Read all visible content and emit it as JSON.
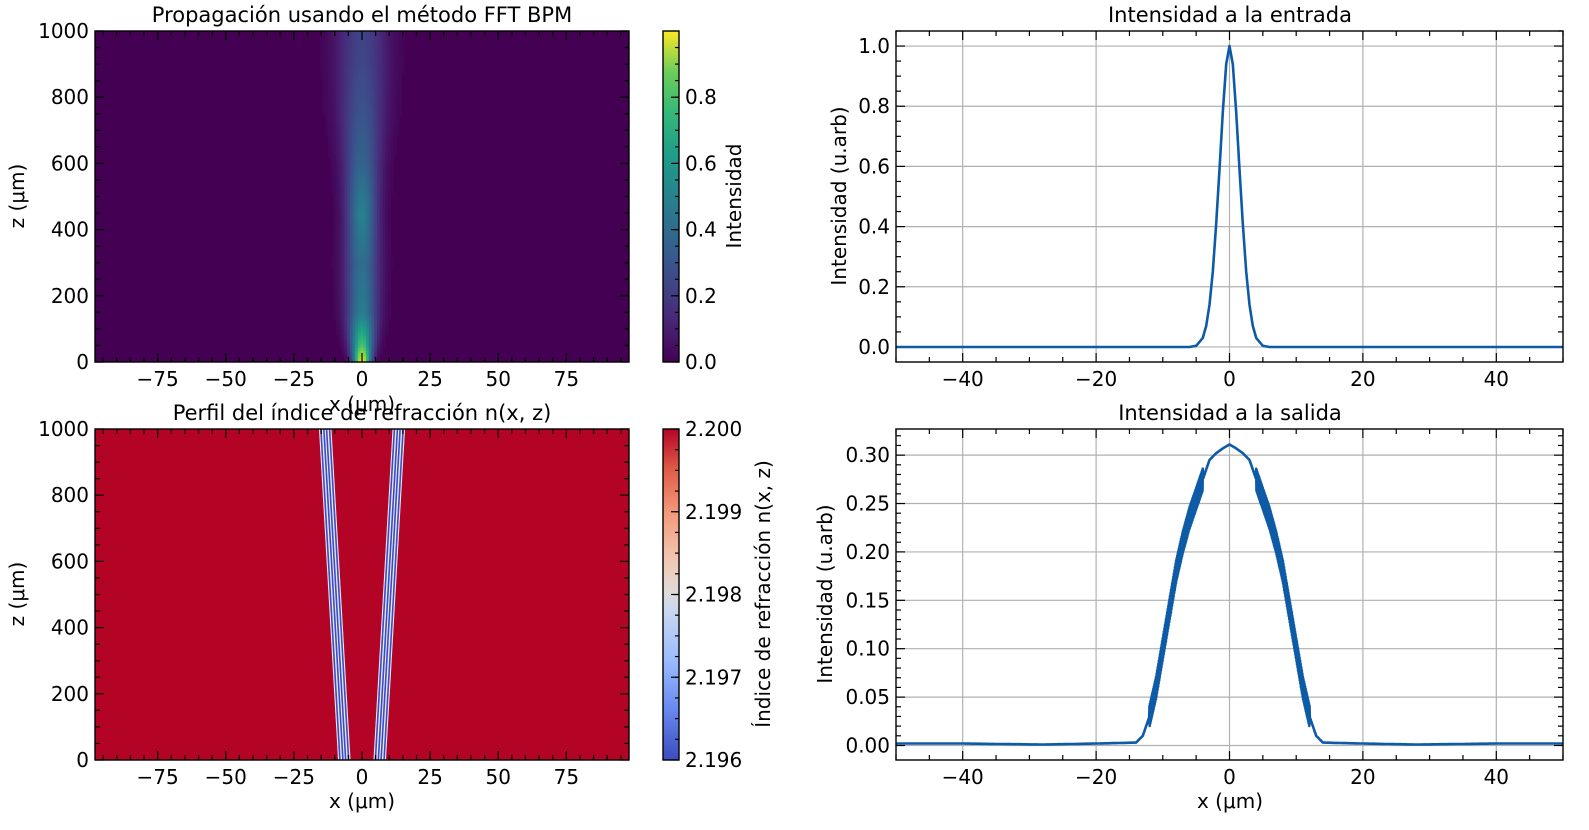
{
  "chart_data": [
    {
      "type": "heatmap",
      "title": "Propagación usando el método FFT BPM",
      "xlabel": "x (μm)",
      "ylabel": "z (μm)",
      "xlim": [
        -98,
        98
      ],
      "ylim": [
        0,
        1000
      ],
      "xticks": [
        "−75",
        "−50",
        "−25",
        "0",
        "25",
        "50",
        "75"
      ],
      "xtick_values": [
        -75,
        -50,
        -25,
        0,
        25,
        50,
        75
      ],
      "yticks": [
        "0",
        "200",
        "400",
        "600",
        "800",
        "1000"
      ],
      "ytick_values": [
        0,
        200,
        400,
        600,
        800,
        1000
      ],
      "colormap": "viridis",
      "colorbar": {
        "label": "Intensidad",
        "range": [
          0,
          1.0
        ],
        "ticks": [
          "0.0",
          "0.2",
          "0.4",
          "0.6",
          "0.8"
        ],
        "tick_values": [
          0,
          0.2,
          0.4,
          0.6,
          0.8
        ]
      },
      "beam": {
        "z": [
          0,
          50,
          150,
          300,
          450,
          600,
          750,
          900,
          1000
        ],
        "peak_intensity": [
          1.0,
          0.72,
          0.42,
          0.36,
          0.44,
          0.32,
          0.26,
          0.21,
          0.2
        ],
        "half_width": [
          3,
          4,
          5.5,
          6,
          5.5,
          6.5,
          8,
          9,
          9
        ]
      }
    },
    {
      "type": "heatmap",
      "title": "Perfil del índice de refracción n(x, z)",
      "xlabel": "x (μm)",
      "ylabel": "z (μm)",
      "xlim": [
        -98,
        98
      ],
      "ylim": [
        0,
        1000
      ],
      "xticks": [
        "−75",
        "−50",
        "−25",
        "0",
        "25",
        "50",
        "75"
      ],
      "xtick_values": [
        -75,
        -50,
        -25,
        0,
        25,
        50,
        75
      ],
      "yticks": [
        "0",
        "200",
        "400",
        "600",
        "800",
        "1000"
      ],
      "ytick_values": [
        0,
        200,
        400,
        600,
        800,
        1000
      ],
      "colormap": "coolwarm",
      "background_index": 2.2,
      "colorbar": {
        "label": "Índice de refracción n(x, z)",
        "range": [
          2.196,
          2.2
        ],
        "ticks": [
          "2.196",
          "2.197",
          "2.198",
          "2.199",
          "2.200"
        ],
        "tick_values": [
          2.196,
          2.197,
          2.198,
          2.199,
          2.2
        ]
      },
      "grating_bands": [
        {
          "x_at_z0": -6.5,
          "x_at_z1000": -13.5
        },
        {
          "x_at_z0": 6.5,
          "x_at_z1000": 13.5
        }
      ]
    },
    {
      "type": "line",
      "title": "Intensidad a la entrada",
      "xlabel": "",
      "ylabel": "Intensidad (u.arb)",
      "xlim": [
        -50,
        50
      ],
      "ylim": [
        -0.05,
        1.05
      ],
      "xticks": [
        "−40",
        "−20",
        "0",
        "20",
        "40"
      ],
      "xtick_values": [
        -40,
        -20,
        0,
        20,
        40
      ],
      "yticks": [
        "0.0",
        "0.2",
        "0.4",
        "0.6",
        "0.8",
        "1.0"
      ],
      "ytick_values": [
        0,
        0.2,
        0.4,
        0.6,
        0.8,
        1.0
      ],
      "grid": true,
      "series": [
        {
          "color": "#0d5ba6",
          "x": [
            -50,
            -10,
            -6,
            -5,
            -4,
            -3.5,
            -3,
            -2.5,
            -2,
            -1.5,
            -1,
            -0.5,
            0,
            0.5,
            1,
            1.5,
            2,
            2.5,
            3,
            3.5,
            4,
            5,
            6,
            10,
            50
          ],
          "y": [
            0,
            0,
            0.0,
            0.004,
            0.03,
            0.07,
            0.14,
            0.25,
            0.41,
            0.59,
            0.78,
            0.94,
            1.0,
            0.94,
            0.78,
            0.59,
            0.41,
            0.25,
            0.14,
            0.07,
            0.03,
            0.004,
            0.0,
            0,
            0
          ]
        }
      ]
    },
    {
      "type": "line",
      "title": "Intensidad a la salida",
      "xlabel": "x (μm)",
      "ylabel": "Intensidad (u.arb)",
      "xlim": [
        -50,
        50
      ],
      "ylim": [
        -0.015,
        0.327
      ],
      "xticks": [
        "−40",
        "−20",
        "0",
        "20",
        "40"
      ],
      "xtick_values": [
        -40,
        -20,
        0,
        20,
        40
      ],
      "yticks": [
        "0.00",
        "0.05",
        "0.10",
        "0.15",
        "0.20",
        "0.25",
        "0.30"
      ],
      "ytick_values": [
        0,
        0.05,
        0.1,
        0.15,
        0.2,
        0.25,
        0.3
      ],
      "grid": true,
      "series": [
        {
          "color": "#0d5ba6",
          "x": [
            -50,
            -40,
            -28,
            -20,
            -14,
            -13,
            -12,
            -11,
            -10,
            -9,
            -8,
            -7,
            -6,
            -5,
            -4,
            -3,
            -2,
            -1,
            0,
            1,
            2,
            3,
            4,
            5,
            6,
            7,
            8,
            9,
            10,
            11,
            12,
            13,
            14,
            20,
            28,
            40,
            50
          ],
          "y": [
            0.002,
            0.002,
            0.001,
            0.002,
            0.003,
            0.01,
            0.03,
            0.06,
            0.1,
            0.14,
            0.18,
            0.21,
            0.235,
            0.255,
            0.275,
            0.295,
            0.302,
            0.307,
            0.311,
            0.307,
            0.302,
            0.295,
            0.275,
            0.255,
            0.235,
            0.21,
            0.18,
            0.14,
            0.1,
            0.06,
            0.03,
            0.01,
            0.003,
            0.002,
            0.001,
            0.002,
            0.002
          ],
          "oscillation_region_x": [
            [
              -12,
              -4
            ],
            [
              4,
              12
            ]
          ]
        }
      ]
    }
  ]
}
